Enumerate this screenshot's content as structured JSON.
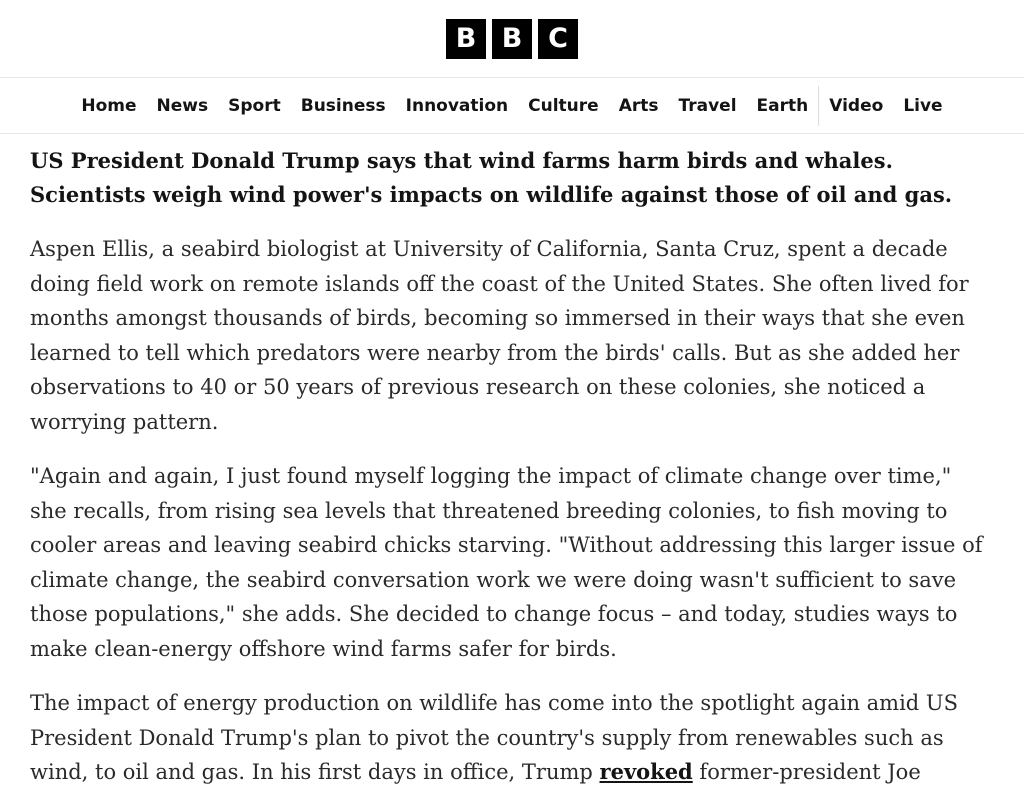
{
  "logo": {
    "letters": [
      "B",
      "B",
      "C"
    ]
  },
  "nav": {
    "items": [
      "Home",
      "News",
      "Sport",
      "Business",
      "Innovation",
      "Culture",
      "Arts",
      "Travel",
      "Earth"
    ],
    "items_after_sep": [
      "Video",
      "Live"
    ]
  },
  "article": {
    "standfirst": "US President Donald Trump says that wind farms harm birds and whales. Scientists weigh wind power's impacts on wildlife against those of oil and gas.",
    "p1": "Aspen Ellis, a seabird biologist at University of California, Santa Cruz, spent a decade doing field work on remote islands off the coast of the United States. She often lived for months amongst thousands of birds, becoming so immersed in their ways that she even learned to tell which predators were nearby from the birds' calls. But as she added her observations to 40 or 50 years of previous research on these colonies, she noticed a worrying pattern.",
    "p2": "\"Again and again, I just found myself logging the impact of climate change over time,\" she recalls, from rising sea levels that threatened breeding colonies, to fish moving to cooler areas and leaving seabird chicks starving. \"Without addressing this larger issue of climate change, the seabird conversation work we were doing wasn't sufficient to save those populations,\" she adds. She decided to change focus – and today, studies ways to make clean-energy offshore wind farms safer for birds.",
    "p3_before": "The impact of energy production on wildlife has come into the spotlight again amid US President Donald Trump's plan to pivot the country's supply from renewables such as wind, to oil and gas. In his first days in office, Trump ",
    "p3_link": "revoked",
    "p3_after": " former-president Joe"
  }
}
